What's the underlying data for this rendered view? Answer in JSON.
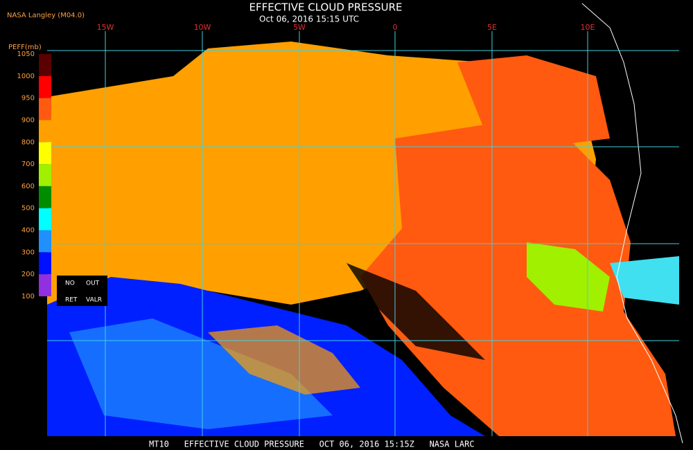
{
  "header": {
    "title": "EFFECTIVE CLOUD PRESSURE",
    "subtitle": "Oct 06, 2016 15:15 UTC",
    "source": "NASA Langley (M04.0)"
  },
  "grid": {
    "lon_labels": [
      "15W",
      "10W",
      "5W",
      "0",
      "5E",
      "10E"
    ]
  },
  "colorbar": {
    "label": "PEFF(mb)",
    "ticks": [
      "1050",
      "1000",
      "950",
      "900",
      "800",
      "700",
      "600",
      "500",
      "400",
      "300",
      "200",
      "100"
    ],
    "colors": [
      "#5a0000",
      "#ff0000",
      "#ff5a10",
      "#ffa000",
      "#ffff00",
      "#a0f000",
      "#008c00",
      "#00ffff",
      "#2090ff",
      "#0010ff",
      "#9030e0"
    ]
  },
  "legend": {
    "items": [
      "NO",
      "OUT",
      "RET",
      "VALR"
    ]
  },
  "footer": "MT10   EFFECTIVE CLOUD PRESSURE   OCT 06, 2016 15:15Z   NASA LARC"
}
